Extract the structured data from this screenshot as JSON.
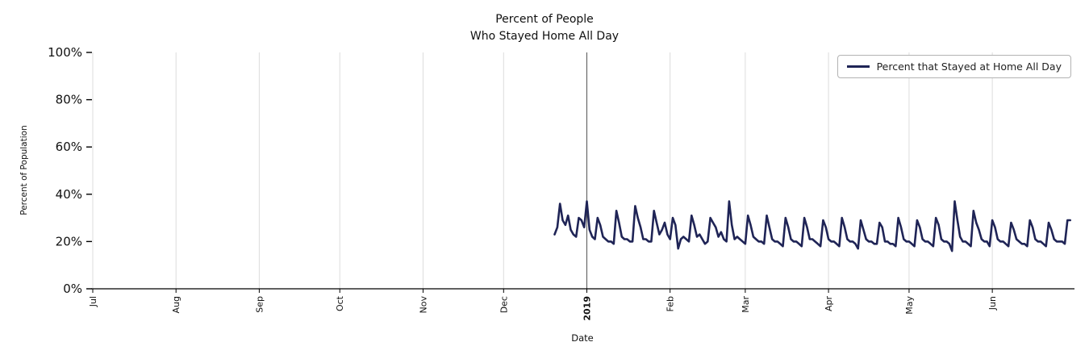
{
  "chart_data": {
    "type": "line",
    "title": "Percent of People\nWho Stayed Home All Day",
    "xlabel": "Date",
    "ylabel": "Percent of Population",
    "ylim": [
      0,
      100
    ],
    "x_domain": [
      "2018-07-01",
      "2019-07-01"
    ],
    "grid": "vertical-only",
    "legend_position": "upper right",
    "colors": {
      "line": "#1f2456",
      "grid": "#dcdcdc",
      "year_line": "#555555",
      "axis": "#000000",
      "legend_border": "#b3b3b3"
    },
    "yticks": [
      {
        "value": 0,
        "label": "0%"
      },
      {
        "value": 20,
        "label": "20%"
      },
      {
        "value": 40,
        "label": "40%"
      },
      {
        "value": 60,
        "label": "60%"
      },
      {
        "value": 80,
        "label": "80%"
      },
      {
        "value": 100,
        "label": "100%"
      }
    ],
    "xticks": [
      {
        "date": "2018-07-01",
        "label": "Jul",
        "bold": false
      },
      {
        "date": "2018-08-01",
        "label": "Aug",
        "bold": false
      },
      {
        "date": "2018-09-01",
        "label": "Sep",
        "bold": false
      },
      {
        "date": "2018-10-01",
        "label": "Oct",
        "bold": false
      },
      {
        "date": "2018-11-01",
        "label": "Nov",
        "bold": false
      },
      {
        "date": "2018-12-01",
        "label": "Dec",
        "bold": false
      },
      {
        "date": "2019-01-01",
        "label": "2019",
        "bold": true
      },
      {
        "date": "2019-02-01",
        "label": "Feb",
        "bold": false
      },
      {
        "date": "2019-03-01",
        "label": "Mar",
        "bold": false
      },
      {
        "date": "2019-04-01",
        "label": "Apr",
        "bold": false
      },
      {
        "date": "2019-05-01",
        "label": "May",
        "bold": false
      },
      {
        "date": "2019-06-01",
        "label": "Jun",
        "bold": false
      }
    ],
    "series": [
      {
        "name": "Percent that Stayed at Home All Day",
        "color": "#1f2456",
        "start_date": "2018-12-20",
        "frequency": "daily",
        "values": [
          23,
          26,
          36,
          29,
          27,
          31,
          25,
          23,
          22,
          30,
          29,
          26,
          37,
          25,
          22,
          21,
          30,
          27,
          22,
          21,
          20,
          20,
          19,
          33,
          28,
          22,
          21,
          21,
          20,
          20,
          35,
          30,
          26,
          21,
          21,
          20,
          20,
          33,
          28,
          23,
          25,
          28,
          23,
          21,
          30,
          27,
          17,
          21,
          22,
          21,
          20,
          31,
          27,
          22,
          23,
          21,
          19,
          20,
          30,
          28,
          26,
          22,
          24,
          21,
          20,
          37,
          27,
          21,
          22,
          21,
          20,
          19,
          31,
          27,
          22,
          21,
          20,
          20,
          19,
          31,
          26,
          21,
          20,
          20,
          19,
          18,
          30,
          26,
          21,
          20,
          20,
          19,
          18,
          30,
          26,
          21,
          21,
          20,
          19,
          18,
          29,
          26,
          21,
          20,
          20,
          19,
          18,
          30,
          26,
          21,
          20,
          20,
          19,
          17,
          29,
          25,
          21,
          20,
          20,
          19,
          19,
          28,
          26,
          20,
          20,
          19,
          19,
          18,
          30,
          26,
          21,
          20,
          20,
          19,
          18,
          29,
          26,
          21,
          20,
          20,
          19,
          18,
          30,
          27,
          21,
          20,
          20,
          19,
          16,
          37,
          29,
          22,
          20,
          20,
          19,
          18,
          33,
          28,
          25,
          21,
          20,
          20,
          18,
          29,
          26,
          21,
          20,
          20,
          19,
          18,
          28,
          25,
          21,
          20,
          19,
          19,
          18,
          29,
          26,
          21,
          20,
          20,
          19,
          18,
          28,
          25,
          21,
          20,
          20,
          20,
          19,
          29,
          29
        ]
      }
    ]
  }
}
